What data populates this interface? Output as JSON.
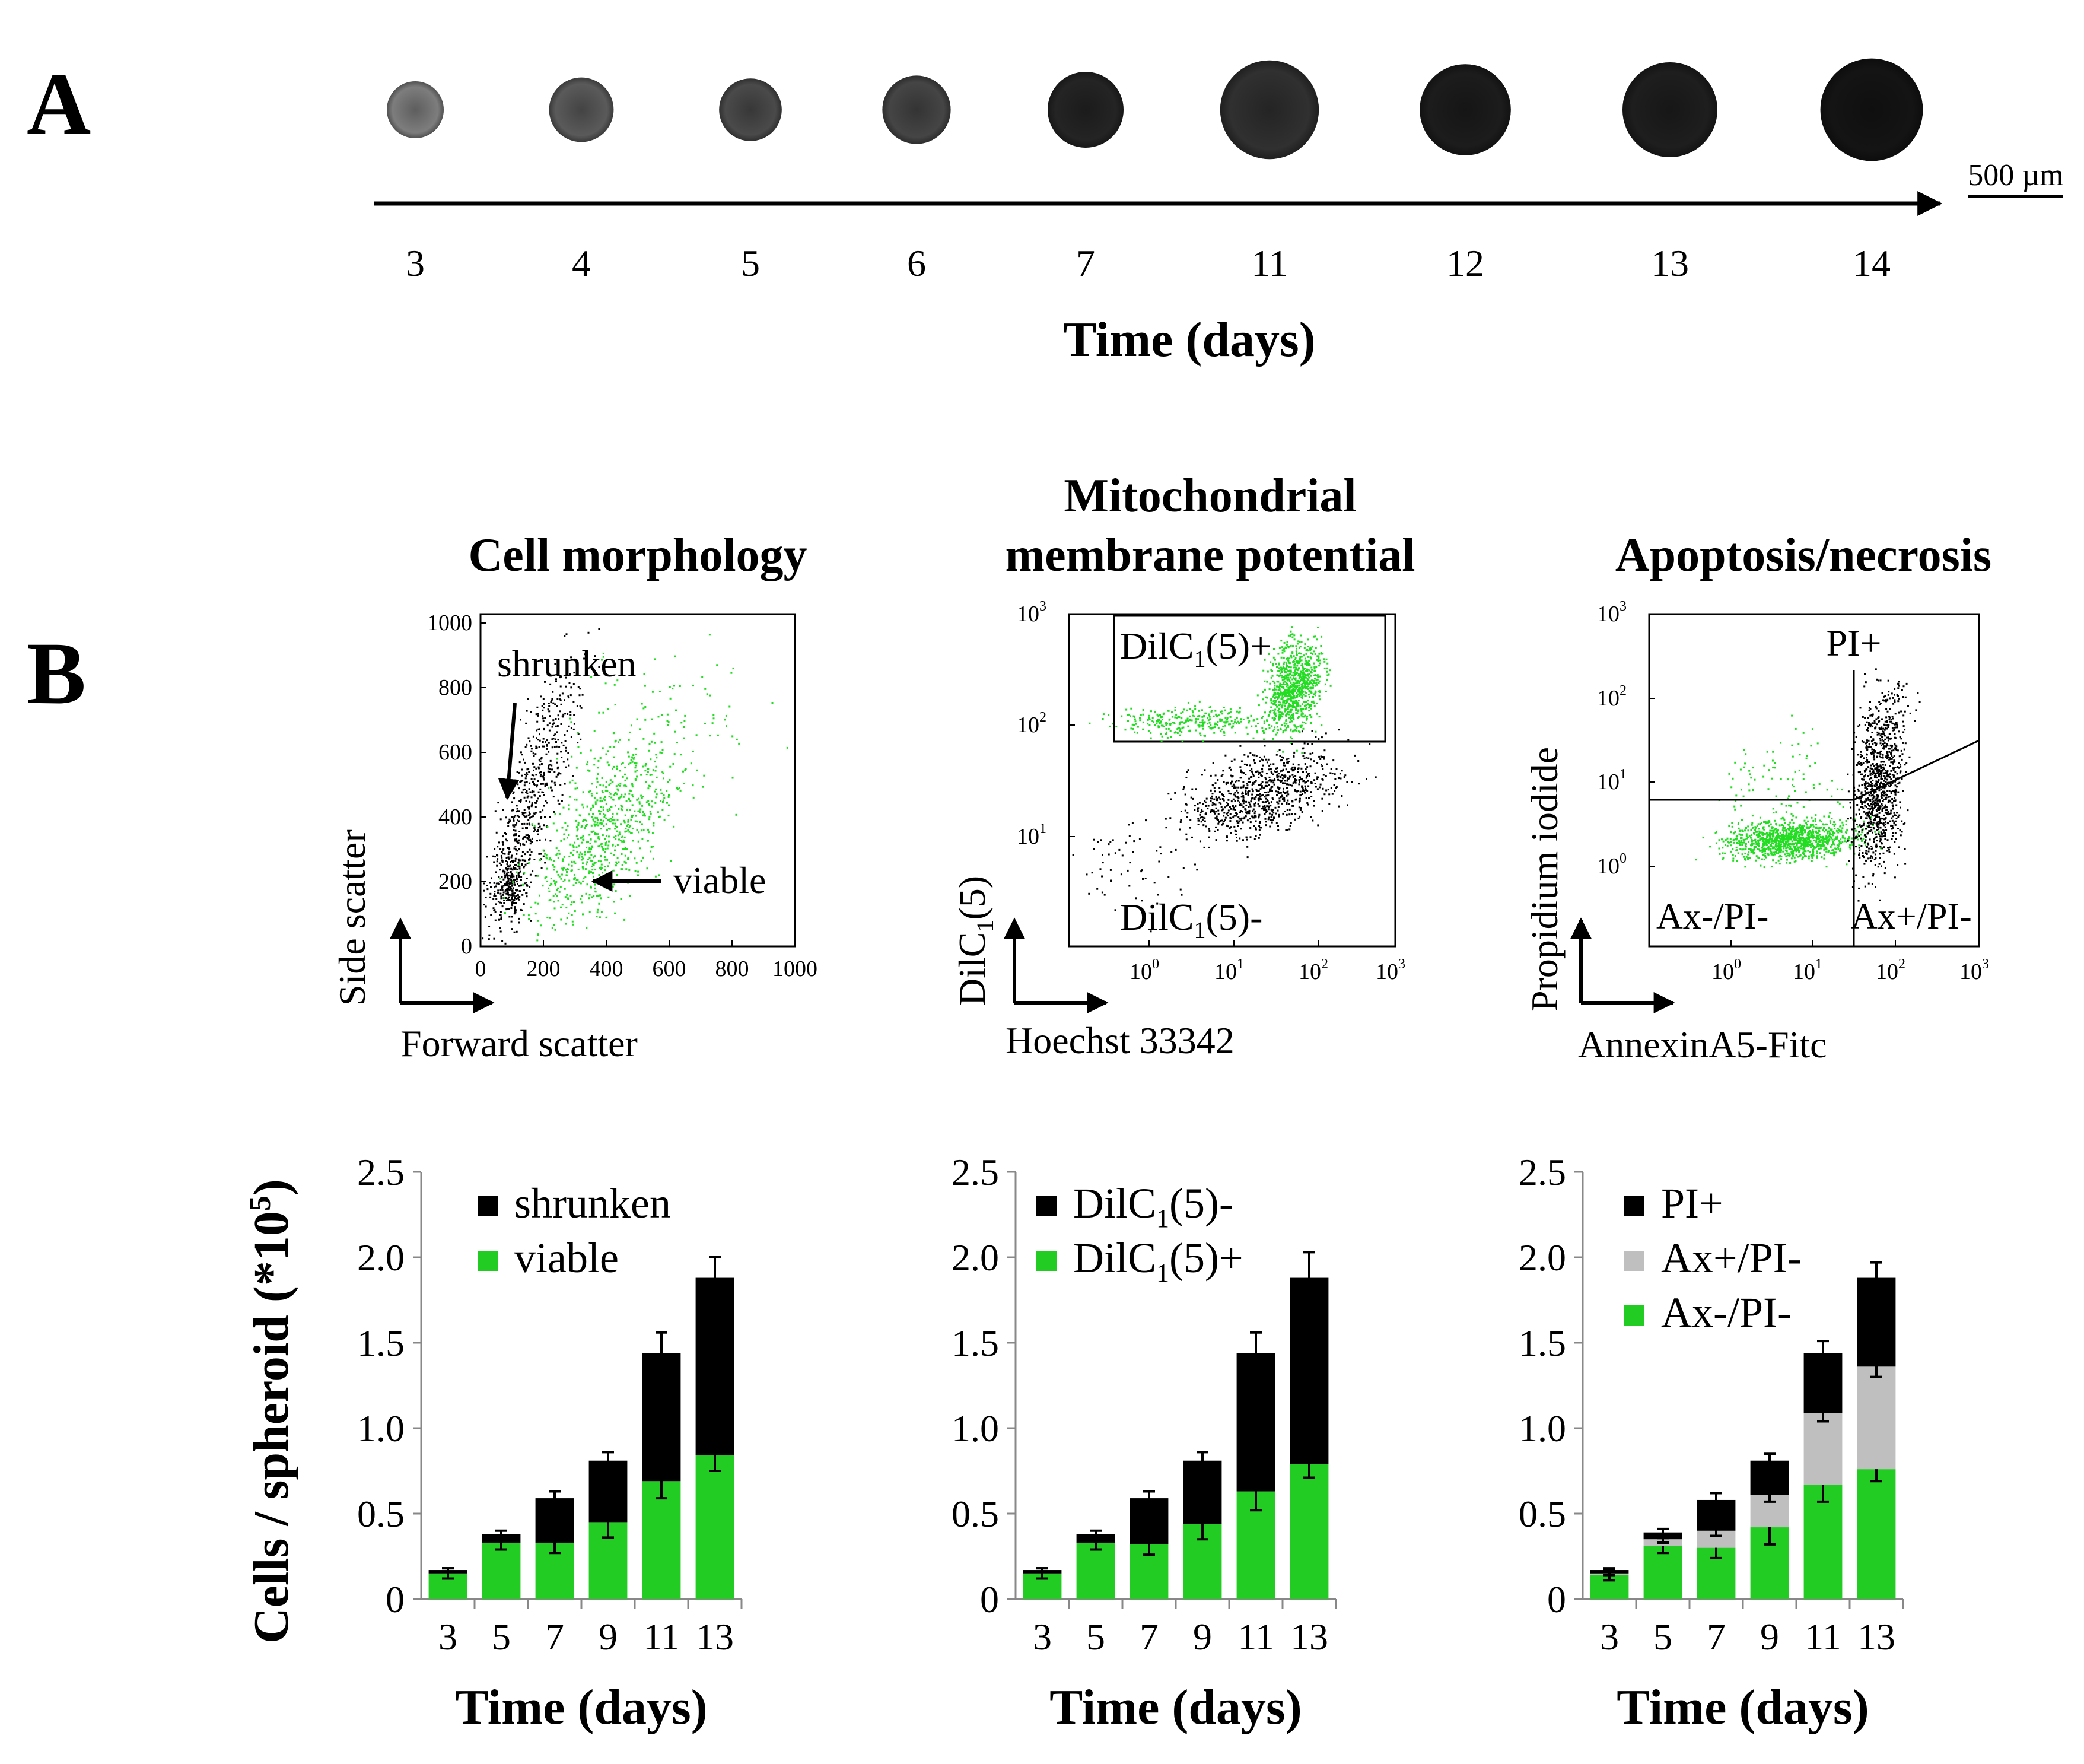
{
  "panel_a": {
    "label": "A",
    "days": [
      "3",
      "4",
      "5",
      "6",
      "7",
      "11",
      "12",
      "13",
      "14"
    ],
    "xlabel": "Time (days)",
    "scale_bar": "500 µm",
    "spheroid_shades": [
      "#7d7d7d",
      "#5a5a5a",
      "#4a4a4a",
      "#454545",
      "#242424",
      "#303030",
      "#1c1c1c",
      "#1e1e1e",
      "#141414"
    ],
    "spheroid_diameters_um": [
      300,
      340,
      330,
      360,
      400,
      520,
      480,
      500,
      540
    ]
  },
  "panel_b": {
    "label": "B",
    "scatter_plots": [
      {
        "title": "Cell morphology",
        "title_line2": "",
        "xlabel": "Forward scatter",
        "ylabel": "Side scatter",
        "x_ticks": [
          "0",
          "200",
          "400",
          "600",
          "800",
          "1000"
        ],
        "y_ticks": [
          "0",
          "200",
          "400",
          "600",
          "800",
          "1000"
        ],
        "annotations": [
          "shrunken",
          "viable"
        ]
      },
      {
        "title": "Mitochondrial",
        "title_line2": "membrane potential",
        "xlabel": "Hoechst 33342",
        "ylabel_main": "DilC",
        "ylabel_sub": "1",
        "ylabel_end": "(5)",
        "x_ticks": [
          "0",
          "1",
          "2",
          "3"
        ],
        "y_ticks": [
          "1",
          "2",
          "3"
        ],
        "tick_base": "10",
        "gate_pos": "DilC1(5)+",
        "gate_neg": "DilC1(5)-"
      },
      {
        "title": "Apoptosis/necrosis",
        "title_line2": "",
        "xlabel": "AnnexinA5-Fitc",
        "ylabel": "Propidium iodide",
        "x_ticks": [
          "0",
          "1",
          "2",
          "3"
        ],
        "y_ticks": [
          "0",
          "1",
          "2",
          "3"
        ],
        "tick_base": "10",
        "quadrants": [
          "PI+",
          "Ax-/PI-",
          "Ax+/PI-"
        ]
      }
    ]
  },
  "chart_data": [
    {
      "type": "bar",
      "stacked": true,
      "title": "",
      "xlabel": "Time (days)",
      "ylabel": "Cells / spheroid (*10",
      "ylabel_sup": "5",
      "ylabel_end": ")",
      "categories": [
        "3",
        "5",
        "7",
        "9",
        "11",
        "13"
      ],
      "ylim": [
        0,
        2.5
      ],
      "y_ticks": [
        "0",
        "0.5",
        "1.0",
        "1.5",
        "2.0",
        "2.5"
      ],
      "series": [
        {
          "name": "viable",
          "color": "#22cc22",
          "values": [
            0.15,
            0.33,
            0.33,
            0.45,
            0.69,
            0.84
          ],
          "errors": [
            0.03,
            0.04,
            0.06,
            0.09,
            0.1,
            0.09
          ]
        },
        {
          "name": "shrunken",
          "color": "#000000",
          "values": [
            0.02,
            0.05,
            0.26,
            0.36,
            0.75,
            1.04
          ],
          "errors": [
            0.01,
            0.02,
            0.04,
            0.05,
            0.12,
            0.12
          ]
        }
      ],
      "legend": [
        {
          "label": "shrunken",
          "color": "#000000",
          "sub": ""
        },
        {
          "label": "viable",
          "color": "#22cc22",
          "sub": ""
        }
      ]
    },
    {
      "type": "bar",
      "stacked": true,
      "title": "",
      "xlabel": "Time (days)",
      "ylabel": "",
      "categories": [
        "3",
        "5",
        "7",
        "9",
        "11",
        "13"
      ],
      "ylim": [
        0,
        2.5
      ],
      "y_ticks": [
        "0",
        "0.5",
        "1.0",
        "1.5",
        "2.0",
        "2.5"
      ],
      "series": [
        {
          "name": "DilC1(5)+",
          "color": "#22cc22",
          "values": [
            0.15,
            0.33,
            0.32,
            0.44,
            0.63,
            0.79
          ],
          "errors": [
            0.03,
            0.04,
            0.06,
            0.09,
            0.11,
            0.08
          ]
        },
        {
          "name": "DilC1(5)-",
          "color": "#000000",
          "values": [
            0.02,
            0.05,
            0.27,
            0.37,
            0.81,
            1.09
          ],
          "errors": [
            0.01,
            0.02,
            0.04,
            0.05,
            0.12,
            0.15
          ]
        }
      ],
      "legend": [
        {
          "label": "DilC",
          "color": "#000000",
          "sub": "1",
          "end": "(5)-"
        },
        {
          "label": "DilC",
          "color": "#22cc22",
          "sub": "1",
          "end": "(5)+"
        }
      ]
    },
    {
      "type": "bar",
      "stacked": true,
      "title": "",
      "xlabel": "Time (days)",
      "ylabel": "",
      "categories": [
        "3",
        "5",
        "7",
        "9",
        "11",
        "13"
      ],
      "ylim": [
        0,
        2.5
      ],
      "y_ticks": [
        "0",
        "0.5",
        "1.0",
        "1.5",
        "2.0",
        "2.5"
      ],
      "series": [
        {
          "name": "Ax-/PI-",
          "color": "#22cc22",
          "values": [
            0.14,
            0.31,
            0.3,
            0.42,
            0.67,
            0.76
          ],
          "errors": [
            0.03,
            0.04,
            0.06,
            0.1,
            0.1,
            0.07
          ]
        },
        {
          "name": "Ax+/PI-",
          "color": "#bfbfbf",
          "values": [
            0.01,
            0.04,
            0.1,
            0.19,
            0.42,
            0.6
          ],
          "errors": [
            0.01,
            0.02,
            0.03,
            0.04,
            0.05,
            0.06
          ]
        },
        {
          "name": "PI+",
          "color": "#000000",
          "values": [
            0.02,
            0.04,
            0.18,
            0.2,
            0.35,
            0.52
          ],
          "errors": [
            0.01,
            0.02,
            0.04,
            0.04,
            0.07,
            0.09
          ]
        }
      ],
      "legend": [
        {
          "label": "PI+",
          "color": "#000000",
          "sub": ""
        },
        {
          "label": "Ax+/PI-",
          "color": "#bfbfbf",
          "sub": ""
        },
        {
          "label": "Ax-/PI-",
          "color": "#22cc22",
          "sub": ""
        }
      ]
    }
  ]
}
